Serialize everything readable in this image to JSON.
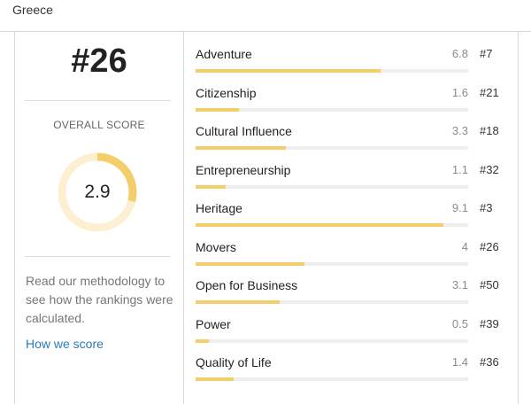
{
  "country": "Greece",
  "summary": {
    "rank": "#26",
    "score_label": "OVERALL SCORE",
    "score": "2.9",
    "score_fraction": 0.29,
    "methodology_text": "Read our methodology to see how the rankings were calculated.",
    "link_label": "How we score"
  },
  "colors": {
    "gauge_fill": "#f4ce6a",
    "gauge_track": "#fdf0d2",
    "bar_fill": "#f4ce6a",
    "bar_track": "#eeeeee",
    "link": "#2a7ab8"
  },
  "categories": [
    {
      "label": "Adventure",
      "score": "6.8",
      "rank": "#7",
      "value": 6.8
    },
    {
      "label": "Citizenship",
      "score": "1.6",
      "rank": "#21",
      "value": 1.6
    },
    {
      "label": "Cultural Influence",
      "score": "3.3",
      "rank": "#18",
      "value": 3.3
    },
    {
      "label": "Entrepreneurship",
      "score": "1.1",
      "rank": "#32",
      "value": 1.1
    },
    {
      "label": "Heritage",
      "score": "9.1",
      "rank": "#3",
      "value": 9.1
    },
    {
      "label": "Movers",
      "score": "4",
      "rank": "#26",
      "value": 4
    },
    {
      "label": "Open for Business",
      "score": "3.1",
      "rank": "#50",
      "value": 3.1
    },
    {
      "label": "Power",
      "score": "0.5",
      "rank": "#39",
      "value": 0.5
    },
    {
      "label": "Quality of Life",
      "score": "1.4",
      "rank": "#36",
      "value": 1.4
    }
  ]
}
